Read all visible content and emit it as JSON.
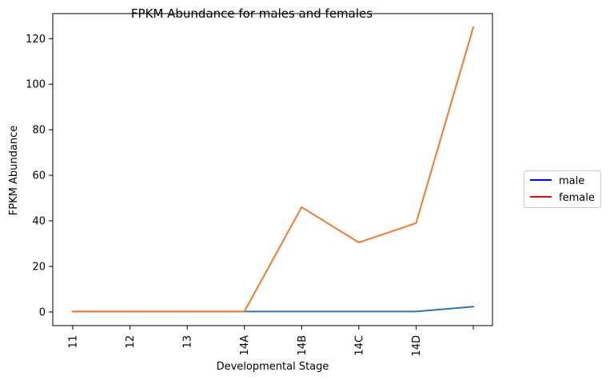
{
  "chart_data": {
    "type": "line",
    "title": "FPKM Abundance for males and females",
    "xlabel": "Developmental Stage",
    "ylabel": "FPKM Abundance",
    "categories": [
      "11",
      "12",
      "13",
      "14A",
      "14B",
      "14C",
      "14D",
      ""
    ],
    "ylim": [
      -6,
      131
    ],
    "yticks": [
      0,
      20,
      40,
      60,
      80,
      100,
      120
    ],
    "grid": false,
    "legend_position": "outside-right",
    "legend": [
      {
        "name": "male",
        "color": "#0000ff"
      },
      {
        "name": "female",
        "color": "#ff0000"
      }
    ],
    "series": [
      {
        "name": "male",
        "color": "#2e75b6",
        "values": [
          0.2,
          0.2,
          0.2,
          0.2,
          0.2,
          0.2,
          0.2,
          2.3
        ]
      },
      {
        "name": "female",
        "color": "#f47b2a",
        "values": [
          0.2,
          0.2,
          0.2,
          0.2,
          46,
          30.5,
          39,
          125
        ]
      }
    ]
  }
}
